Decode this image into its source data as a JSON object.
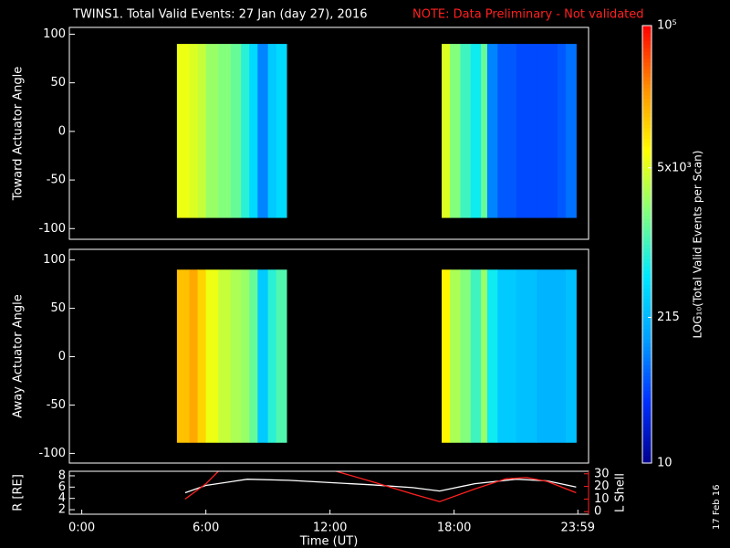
{
  "title": "TWINS1. Total Valid Events: 27 Jan (day  27), 2016",
  "note": "NOTE: Data Preliminary - Not validated",
  "footer": "17 Feb 16",
  "chart_data": [
    {
      "type": "heatmap",
      "ylabel": "Toward Actuator Angle",
      "xlim": [
        -0.6,
        24.5
      ],
      "ylim": [
        -111,
        107
      ],
      "yticks": [
        -100,
        -50,
        0,
        50,
        100
      ],
      "xbins": [
        4.6,
        5.2,
        5.6,
        6.0,
        6.6,
        7.2,
        7.7,
        8.1,
        8.5,
        9.0,
        9.4,
        9.9,
        17.4,
        17.8,
        18.3,
        18.8,
        19.3,
        19.6,
        20.1,
        21,
        22,
        23,
        23.4,
        23.9
      ],
      "ybins": [
        -89,
        90
      ],
      "values": [
        [
          6000,
          5000,
          4000,
          2500,
          2000,
          1500,
          800,
          400,
          100,
          300,
          400,
          null,
          5000,
          2000,
          1000,
          600,
          1500,
          100,
          60,
          50,
          50,
          60,
          80
        ]
      ]
    },
    {
      "type": "heatmap",
      "ylabel": "Away Actuator Angle",
      "xlim": [
        -0.6,
        24.5
      ],
      "ylim": [
        -110,
        111
      ],
      "yticks": [
        -100,
        -50,
        0,
        50,
        100
      ],
      "xbins": [
        4.6,
        5.2,
        5.6,
        6.0,
        6.6,
        7.2,
        7.7,
        8.1,
        8.5,
        9.0,
        9.4,
        9.9,
        17.4,
        17.8,
        18.3,
        18.8,
        19.3,
        19.6,
        20.1,
        21,
        22,
        23,
        23.4,
        23.9
      ],
      "ybins": [
        -89,
        90
      ],
      "values": [
        [
          15000,
          20000,
          12000,
          6000,
          4000,
          3000,
          2500,
          1500,
          300,
          800,
          1200,
          null,
          8000,
          3000,
          2000,
          1000,
          2500,
          600,
          300,
          250,
          200,
          200,
          250
        ]
      ]
    },
    {
      "type": "line",
      "xlabel": "Time (UT)",
      "ylabel": "R [RE]",
      "y2label": "L Shell",
      "xlim": [
        -0.6,
        24.5
      ],
      "ylim": [
        1.2,
        8.8
      ],
      "yticks": [
        2,
        4,
        6,
        8
      ],
      "y2lim": [
        -2,
        32
      ],
      "y2ticks": [
        0,
        10,
        20,
        30
      ],
      "xticks": [
        {
          "value": 0,
          "label": "0:00"
        },
        {
          "value": 6,
          "label": "6:00"
        },
        {
          "value": 12,
          "label": "12:00"
        },
        {
          "value": 18,
          "label": "18:00"
        },
        {
          "value": 23.983,
          "label": "23:59"
        }
      ],
      "series": [
        {
          "name": "R",
          "color": "#ffffff",
          "x": [
            5,
            6,
            8,
            10,
            12,
            14,
            16,
            17.3,
            19,
            21,
            22.5,
            23.9
          ],
          "values": [
            5.0,
            6.3,
            7.4,
            7.2,
            6.8,
            6.4,
            5.9,
            5.3,
            6.6,
            7.4,
            7.1,
            6.0
          ]
        },
        {
          "name": "L Shell",
          "color": "#ff2020",
          "axis": "y2",
          "x": [
            5,
            6,
            6.6,
            9,
            12.3,
            14,
            16,
            17.3,
            19,
            20.5,
            21.5,
            22.5,
            23.9
          ],
          "values": [
            10,
            22,
            32,
            null,
            32,
            24,
            14,
            8,
            18,
            26,
            27,
            24,
            15
          ]
        }
      ]
    },
    {
      "type": "colorbar",
      "label": "LOG₁₀(Total Valid Events per Scan)",
      "log_scale": true,
      "lim": [
        10,
        100000
      ],
      "ticks": [
        10,
        215,
        {
          "value": 5000,
          "label": "5x10³"
        },
        {
          "value": 100000,
          "label": "10⁵"
        }
      ],
      "colors": [
        "#00008c",
        "#0030ff",
        "#00a0ff",
        "#00e8ff",
        "#80ff80",
        "#ffff00",
        "#ff9000",
        "#ff0000"
      ]
    }
  ]
}
